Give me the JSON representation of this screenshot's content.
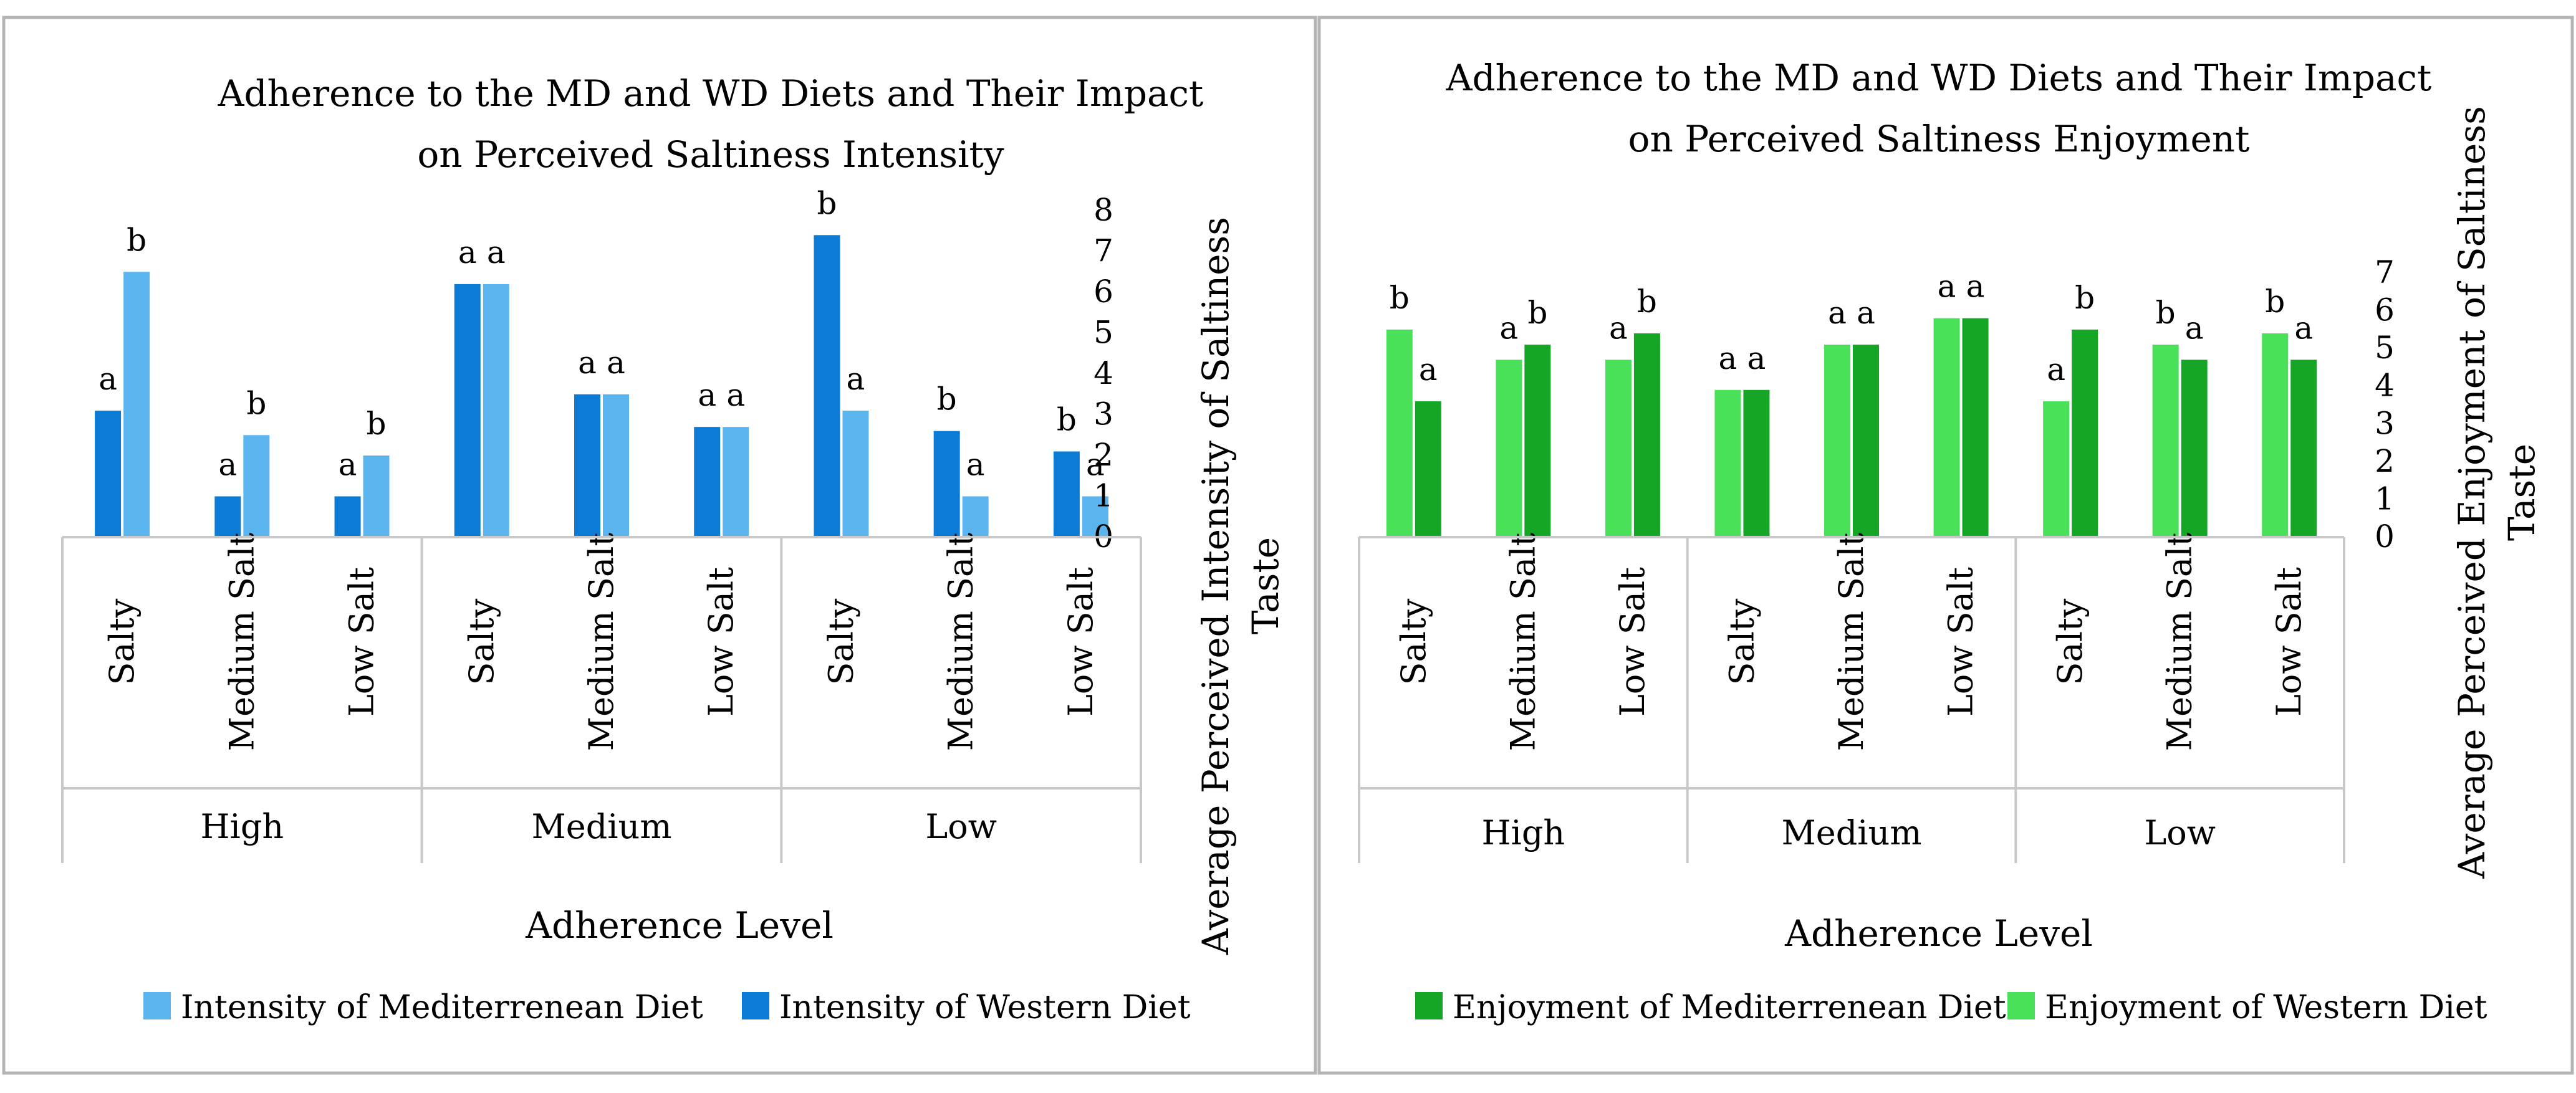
{
  "chart_data": [
    {
      "type": "bar",
      "title": [
        "Adherence to the MD and WD Diets and Their Impact",
        "on Perceived Saltiness Intensity"
      ],
      "xlabel": "Adherence Level",
      "ylabel": [
        "Average Perceived Intensity  of Saltiness",
        "Taste"
      ],
      "ylim": [
        0,
        8
      ],
      "yticks": [
        0,
        1,
        2,
        3,
        4,
        5,
        6,
        7,
        8
      ],
      "groups": [
        "High",
        "Medium",
        "Low"
      ],
      "categories": [
        "Salty",
        "Medium Salt",
        "Low Salt",
        "Salty",
        "Medium Salt",
        "Low Salt",
        "Salty",
        "Medium Salt",
        "Low Salt"
      ],
      "series": [
        {
          "name": "Intensity of  Western Diet",
          "color": "#0b7bd6",
          "values": [
            3.1,
            1.0,
            1.0,
            6.2,
            3.5,
            2.7,
            7.4,
            2.6,
            2.1
          ],
          "labels": [
            "a",
            "a",
            "a",
            "a",
            "a",
            "a",
            "b",
            "b",
            "b"
          ]
        },
        {
          "name": "Intensity of  Mediterrenean Diet",
          "color": "#5ab4ee",
          "values": [
            6.5,
            2.5,
            2.0,
            6.2,
            3.5,
            2.7,
            3.1,
            1.0,
            1.0
          ],
          "labels": [
            "b",
            "b",
            "b",
            "a",
            "a",
            "a",
            "a",
            "a",
            "a"
          ]
        }
      ],
      "legend": [
        {
          "name": "Intensity of  Mediterrenean Diet",
          "color": "#5ab4ee"
        },
        {
          "name": "Intensity of  Western Diet",
          "color": "#0b7bd6"
        }
      ],
      "legend_position": "bottom"
    },
    {
      "type": "bar",
      "title": [
        "Adherence to the MD and WD Diets and Their Impact",
        "on Perceived Saltiness Enjoyment"
      ],
      "xlabel": "Adherence Level",
      "ylabel": [
        "Average Perceived Enjoyment of Saltiness",
        "Taste"
      ],
      "ylim": [
        0,
        7
      ],
      "yticks": [
        0,
        1,
        2,
        3,
        4,
        5,
        6,
        7
      ],
      "groups": [
        "High",
        "Medium",
        "Low"
      ],
      "categories": [
        "Salty",
        "Medium Salt",
        "Low Salt",
        "Salty",
        "Medium Salt",
        "Low Salt",
        "Salty",
        "Medium Salt",
        "Low Salt"
      ],
      "series": [
        {
          "name": "Enjoyment of  Western Diet",
          "color": "#4be05a",
          "values": [
            5.5,
            4.7,
            4.7,
            3.9,
            5.1,
            5.8,
            3.6,
            5.1,
            5.4
          ],
          "labels": [
            "b",
            "a",
            "a",
            "a",
            "a",
            "a",
            "a",
            "b",
            "b"
          ]
        },
        {
          "name": "Enjoyment of  Mediterrenean Diet",
          "color": "#16a626",
          "values": [
            3.6,
            5.1,
            5.4,
            3.9,
            5.1,
            5.8,
            5.5,
            4.7,
            4.7
          ],
          "labels": [
            "a",
            "b",
            "b",
            "a",
            "a",
            "a",
            "b",
            "a",
            "a"
          ]
        }
      ],
      "legend": [
        {
          "name": "Enjoyment of  Mediterrenean Diet",
          "color": "#16a626"
        },
        {
          "name": "Enjoyment of  Western Diet",
          "color": "#4be05a"
        }
      ],
      "legend_position": "bottom"
    }
  ]
}
